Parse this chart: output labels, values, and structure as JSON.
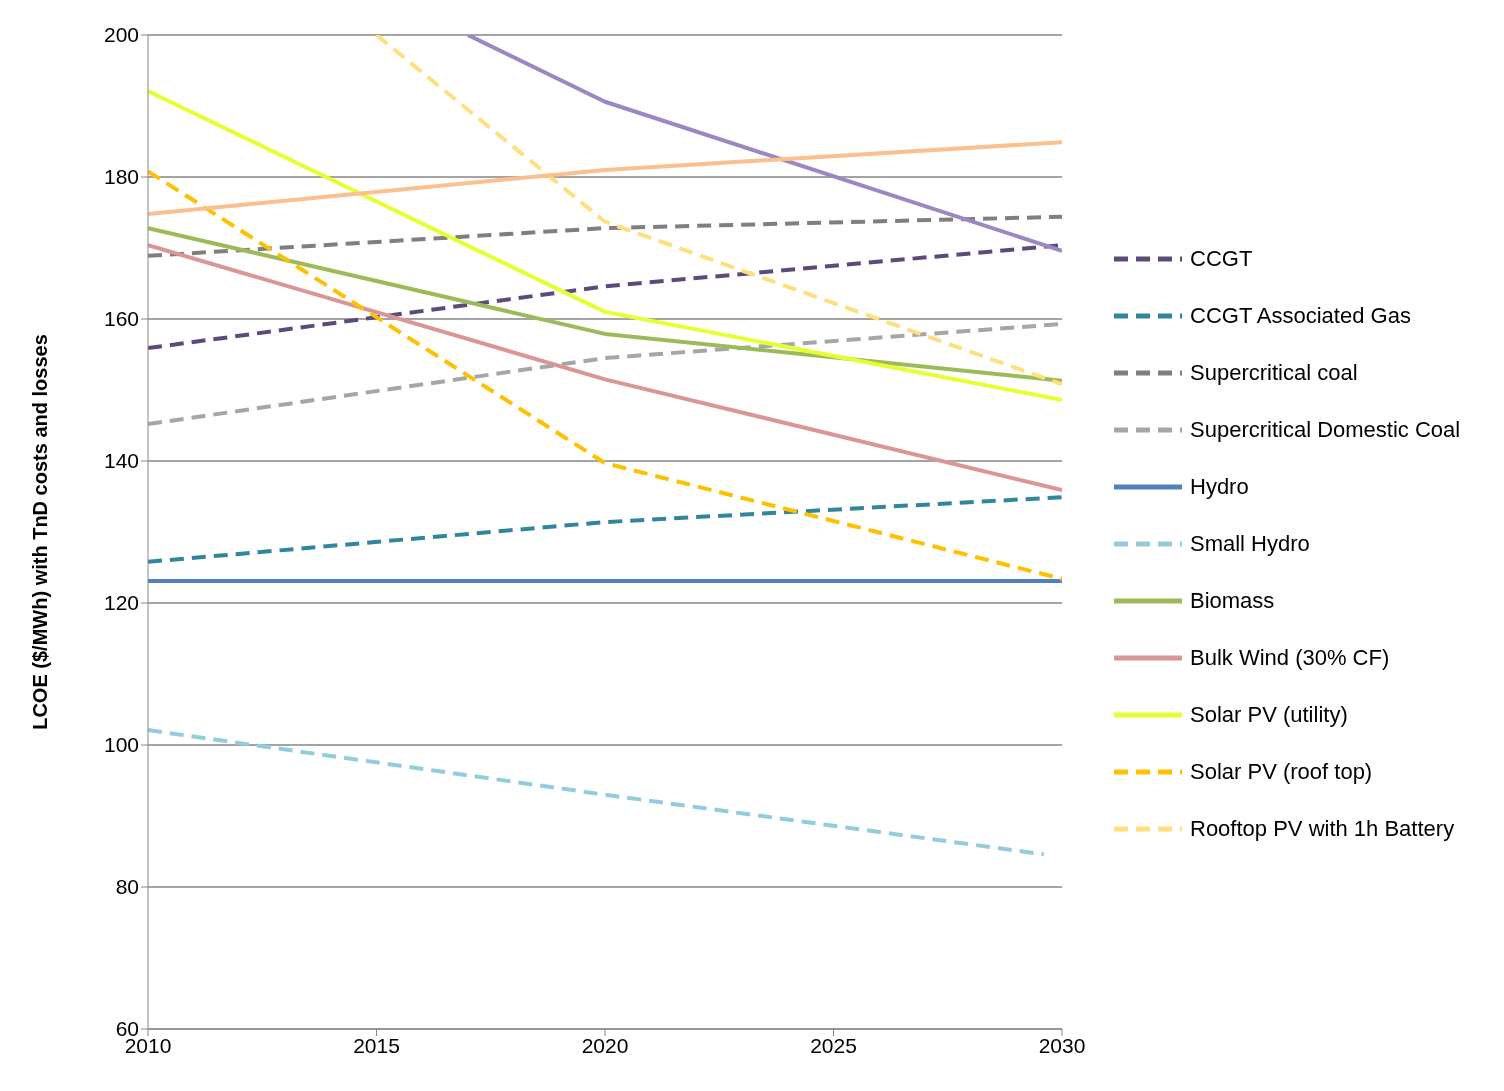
{
  "chart_data": {
    "type": "line",
    "ylabel": "LCOE ($/MWh) with TnD costs and losses",
    "x": [
      2010,
      2020,
      2030
    ],
    "series": [
      {
        "name": "CCGT",
        "color": "#5f497a",
        "line_style": "dashed",
        "values": [
          155.9,
          164.6,
          170.4
        ]
      },
      {
        "name": "CCGT Associated Gas",
        "color": "#31859c",
        "line_style": "dashed",
        "values": [
          125.8,
          131.4,
          134.9
        ]
      },
      {
        "name": "Supercritical coal",
        "color": "#7f7f7f",
        "line_style": "dashed",
        "values": [
          168.9,
          172.8,
          174.4
        ]
      },
      {
        "name": "Supercritical Domestic Coal",
        "color": "#a6a6a6",
        "line_style": "dashed",
        "values": [
          145.2,
          154.5,
          159.3
        ]
      },
      {
        "name": "Hydro",
        "color": "#4f81bd",
        "line_style": "solid",
        "values": [
          123.1,
          123.1,
          123.1
        ]
      },
      {
        "name": "Small Hydro",
        "color": "#93cddd",
        "line_style": "dashed",
        "x": [
          2010,
          2020,
          2029.6
        ],
        "values": [
          102.1,
          93.0,
          84.6
        ]
      },
      {
        "name": "Biomass",
        "color": "#9bbb59",
        "line_style": "solid",
        "values": [
          172.8,
          157.9,
          151.3
        ]
      },
      {
        "name": "Bulk Wind (30% CF)",
        "color": "#d99694",
        "line_style": "solid",
        "values": [
          170.4,
          151.5,
          135.9
        ]
      },
      {
        "name": "Solar PV (utility)",
        "color": "#e6ff33",
        "line_style": "solid",
        "values": [
          192.1,
          161.0,
          148.6
        ]
      },
      {
        "name": "Solar PV (roof top)",
        "color": "#ffc000",
        "line_style": "dashed",
        "values": [
          180.8,
          139.7,
          123.4
        ]
      },
      {
        "name": "Rooftop PV with 1h Battery",
        "color": "#ffe07f",
        "line_style": "dashed",
        "x": [
          2015,
          2020,
          2030
        ],
        "values": [
          200,
          173.7,
          150.8
        ]
      },
      {
        "color": "#9b87c2",
        "line_style": "solid",
        "x": [
          2017,
          2020,
          2030
        ],
        "values": [
          200,
          190.6,
          169.6
        ]
      },
      {
        "color": "#fac090",
        "line_style": "solid",
        "values": [
          174.8,
          181.0,
          184.9
        ]
      }
    ],
    "xlim": [
      2010,
      2030
    ],
    "xticks": [
      2010,
      2015,
      2020,
      2025,
      2030
    ],
    "ylim": [
      60,
      200
    ],
    "yticks": [
      60,
      80,
      100,
      120,
      140,
      160,
      180,
      200
    ],
    "grid": "y",
    "legend": "right",
    "marker": "none"
  }
}
